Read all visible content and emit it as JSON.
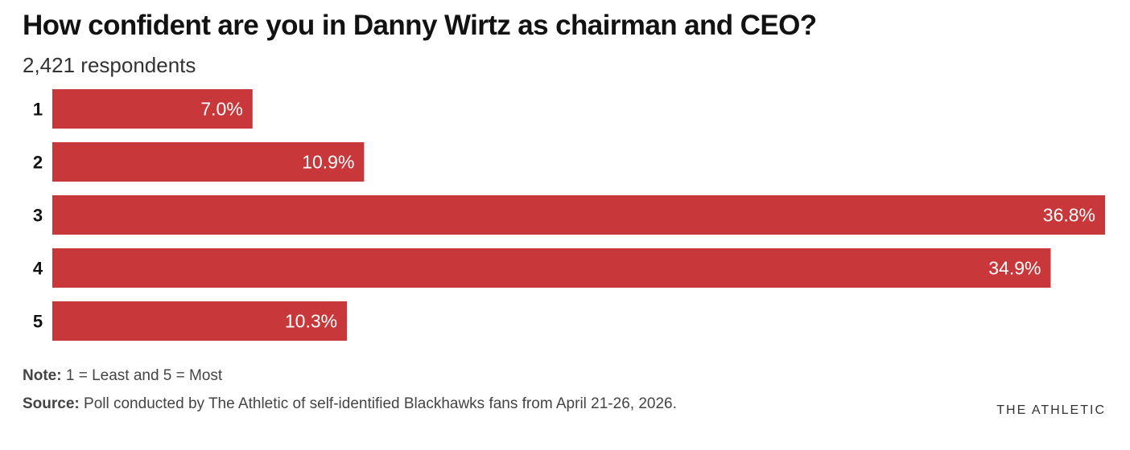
{
  "colors": {
    "bar": "#c8373a",
    "label": "#ffffff",
    "text": "#121212"
  },
  "footer": {
    "note_label": "Note:",
    "note_text": "1 = Least and 5 = Most",
    "source_label": "Source:",
    "source_text": "Poll conducted by The Athletic of self-identified Blackhawks fans from April 21-26, 2026.",
    "brand": "THE ATHLETIC"
  },
  "chart_data": {
    "type": "bar",
    "orientation": "horizontal",
    "title": "How confident are you in Danny Wirtz as chairman and CEO?",
    "subtitle": "2,421 respondents",
    "categories": [
      "1",
      "2",
      "3",
      "4",
      "5"
    ],
    "values": [
      7.0,
      10.9,
      36.8,
      34.9,
      10.3
    ],
    "value_labels": [
      "7.0%",
      "10.9%",
      "36.8%",
      "34.9%",
      "10.3%"
    ],
    "unit": "%",
    "grid": false,
    "legend": false
  }
}
